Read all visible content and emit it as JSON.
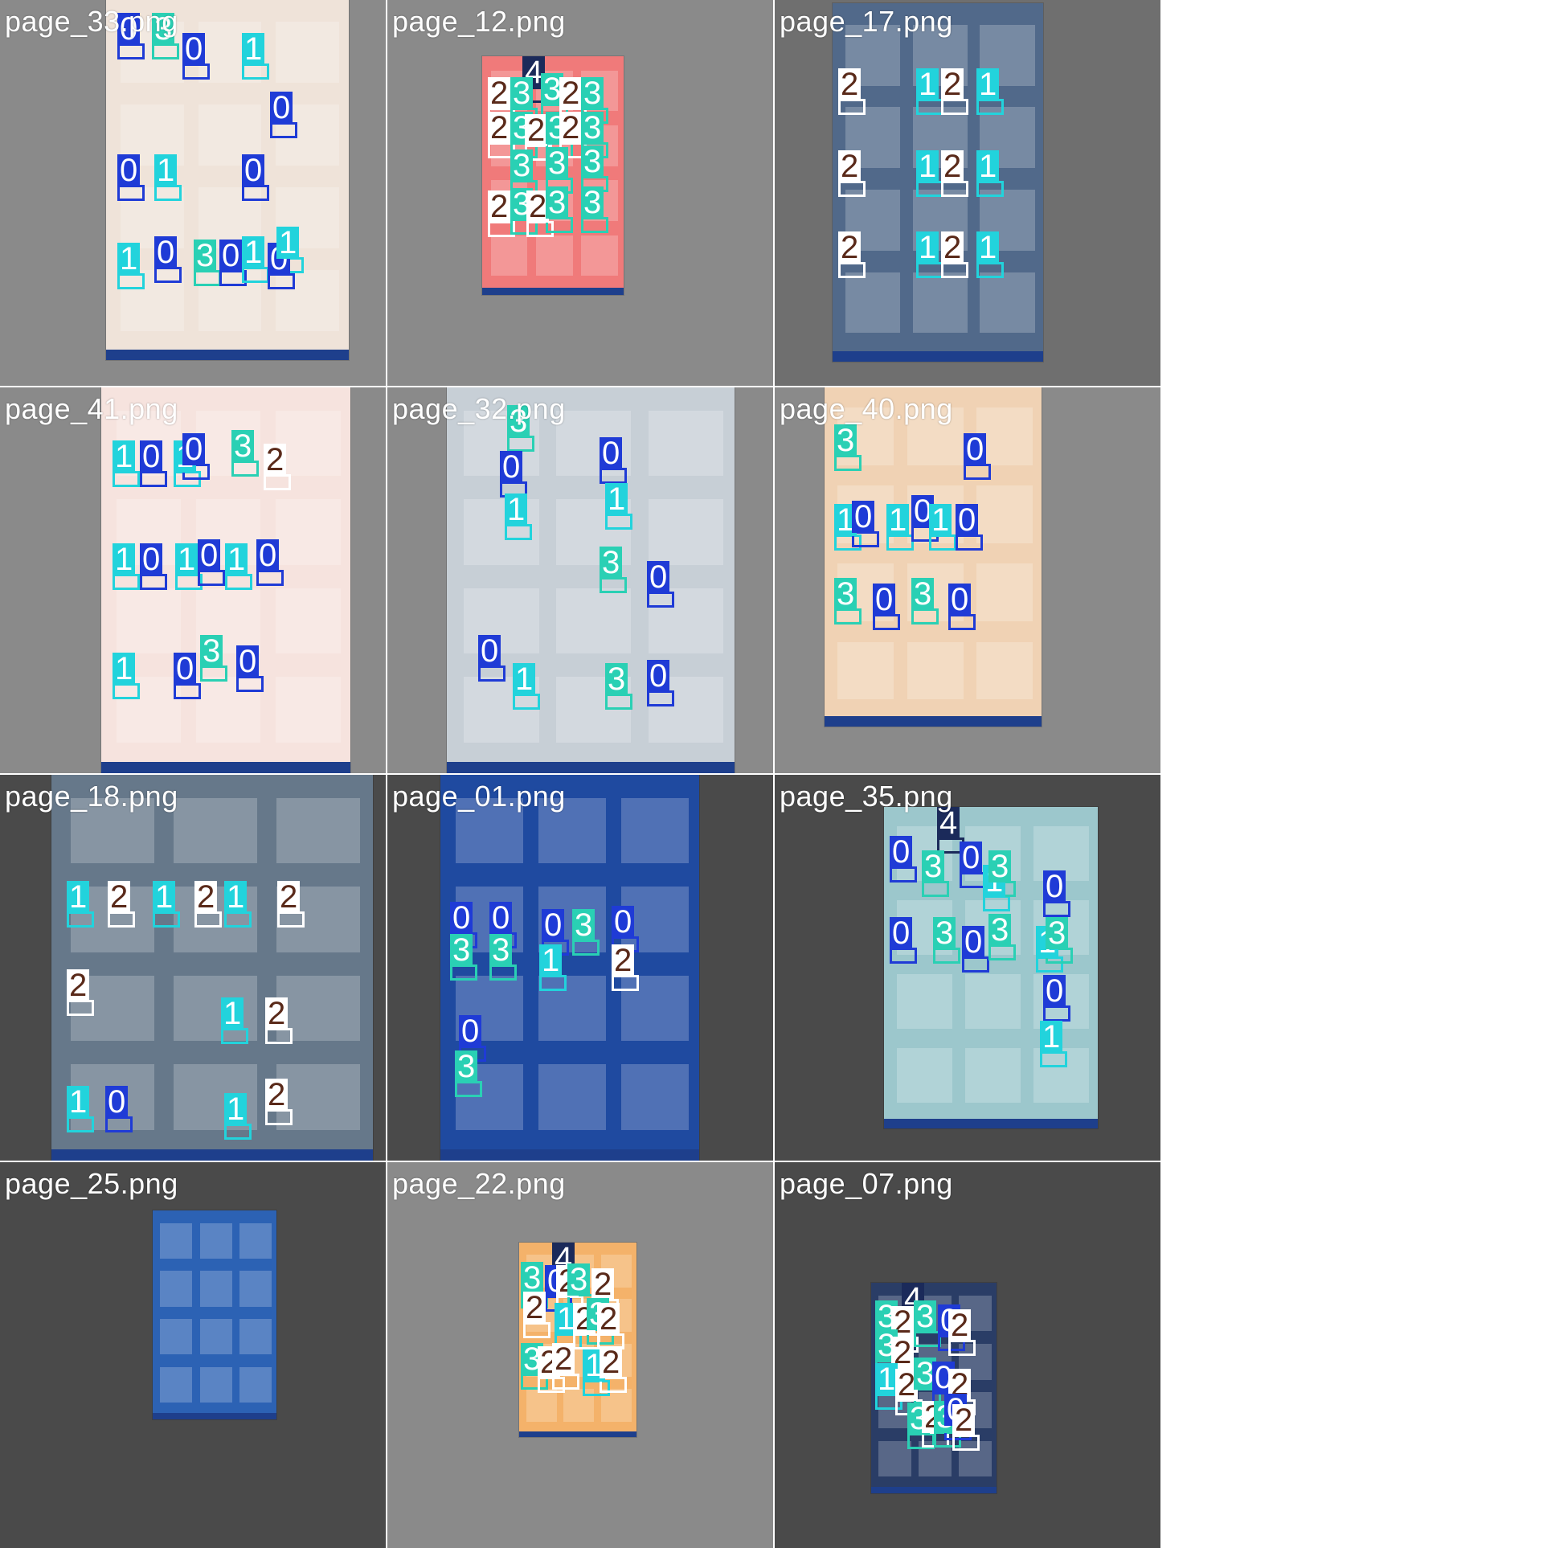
{
  "grid": {
    "cells": [
      {
        "label": "page_33.png",
        "bg": "#8a8a8a",
        "sheet": "#efe3d9",
        "tags": [
          "0",
          "3",
          "0",
          "1",
          "0",
          "0",
          "1",
          "0",
          "1",
          "0",
          "3",
          "0",
          "1",
          "0",
          "1"
        ]
      },
      {
        "label": "page_12.png",
        "bg": "#8a8a8a",
        "sheet": "#f07a7a",
        "tags": [
          "4",
          "2",
          "3",
          "3",
          "2",
          "3",
          "2",
          "3",
          "2",
          "3",
          "2",
          "3",
          "3",
          "3",
          "3",
          "2",
          "3",
          "2",
          "3",
          "3"
        ]
      },
      {
        "label": "page_17.png",
        "bg": "#6f6f6f",
        "sheet": "#51698a",
        "tags": [
          "2",
          "1",
          "2",
          "1",
          "2",
          "1",
          "2",
          "1",
          "2",
          "1",
          "2",
          "1"
        ]
      },
      {
        "label": "page_41.png",
        "bg": "#8a8a8a",
        "sheet": "#f6e3de",
        "tags": [
          "1",
          "0",
          "1",
          "0",
          "3",
          "2",
          "1",
          "0",
          "1",
          "0",
          "1",
          "0",
          "1",
          "0",
          "3",
          "0"
        ]
      },
      {
        "label": "page_32.png",
        "bg": "#8a8a8a",
        "sheet": "#c7cfd6",
        "tags": [
          "3",
          "0",
          "0",
          "1",
          "1",
          "3",
          "0",
          "0",
          "1",
          "3",
          "0"
        ]
      },
      {
        "label": "page_40.png",
        "bg": "#8a8a8a",
        "sheet": "#f0d2b4",
        "tags": [
          "3",
          "0",
          "1",
          "0",
          "1",
          "0",
          "1",
          "0",
          "3",
          "0",
          "3",
          "0"
        ]
      },
      {
        "label": "page_18.png",
        "bg": "#4a4a4a",
        "sheet": "#66788a",
        "tags": [
          "1",
          "2",
          "1",
          "2",
          "1",
          "2",
          "2",
          "1",
          "2",
          "1",
          "0",
          "1",
          "2"
        ]
      },
      {
        "label": "page_01.png",
        "bg": "#4a4a4a",
        "sheet": "#1f4aa0",
        "tags": [
          "0",
          "3",
          "0",
          "3",
          "0",
          "1",
          "3",
          "0",
          "2",
          "0",
          "3"
        ]
      },
      {
        "label": "page_35.png",
        "bg": "#4a4a4a",
        "sheet": "#9cc7cc",
        "tags": [
          "4",
          "0",
          "3",
          "0",
          "1",
          "3",
          "0",
          "0",
          "3",
          "0",
          "3",
          "1",
          "3",
          "0",
          "1"
        ]
      },
      {
        "label": "page_25.png",
        "bg": "#4a4a4a",
        "sheet": "#2c62b4",
        "tags": []
      },
      {
        "label": "page_22.png",
        "bg": "#8a8a8a",
        "sheet": "#f4b26a",
        "tags": [
          "4",
          "3",
          "0",
          "2",
          "3",
          "2",
          "2",
          "1",
          "2",
          "3",
          "2",
          "3",
          "2",
          "2",
          "1",
          "2"
        ]
      },
      {
        "label": "page_07.png",
        "bg": "#4a4a4a",
        "sheet": "#2a3d66",
        "tags": [
          "4",
          "3",
          "2",
          "3",
          "0",
          "2",
          "3",
          "2",
          "1",
          "2",
          "3",
          "0",
          "2",
          "3",
          "2",
          "3",
          "0",
          "2"
        ]
      }
    ]
  },
  "colors": {
    "0": "#1f3bd6",
    "1": "#22d3dc",
    "2": "#ffffff",
    "3": "#2ad0b4",
    "4": "#1b2a5a"
  },
  "text_colors": {
    "0": "#ffffff",
    "1": "#ffffff",
    "2": "#5a2a1a",
    "3": "#ffffff",
    "4": "#ffffff"
  }
}
